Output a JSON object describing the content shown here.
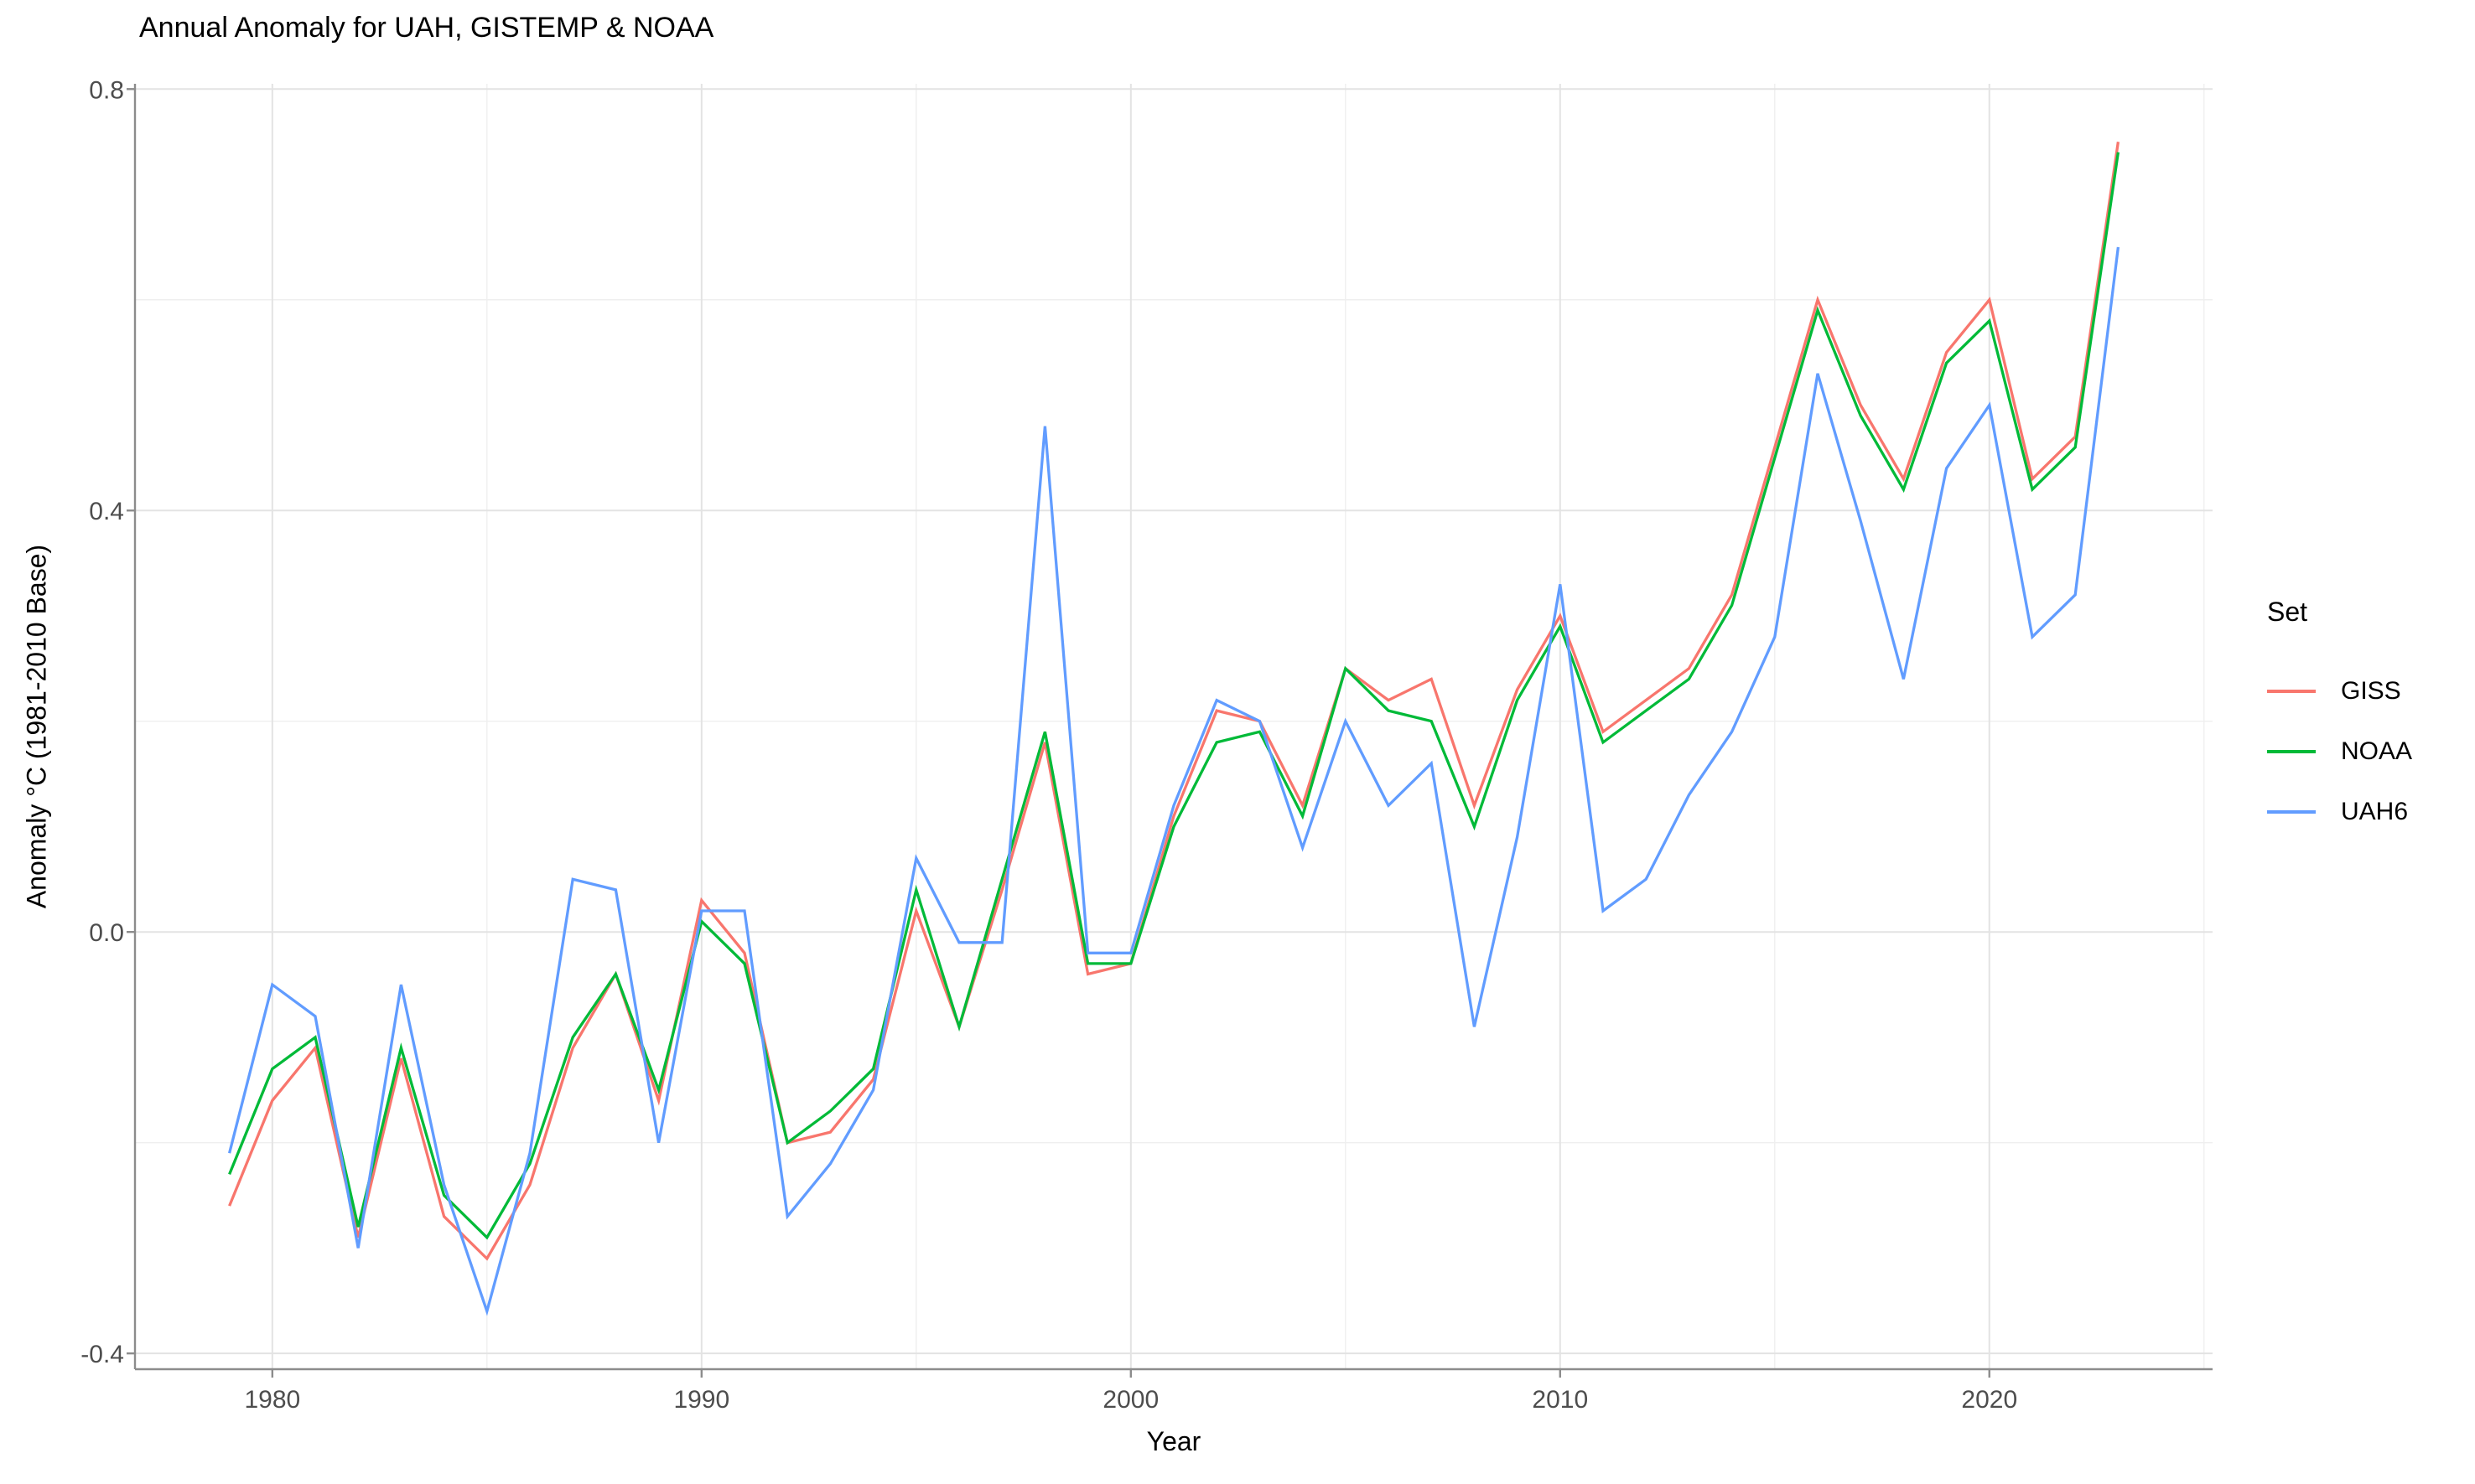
{
  "title": "Annual Anomaly for UAH, GISTEMP & NOAA",
  "legend": {
    "title": "Set",
    "items": [
      {
        "label": "GISS",
        "color": "#F8766D"
      },
      {
        "label": "NOAA",
        "color": "#00BA38"
      },
      {
        "label": "UAH6",
        "color": "#619CFF"
      }
    ]
  },
  "colors": {
    "background": "#FFFFFF",
    "grid_major": "#E3E3E3",
    "grid_minor": "#EFEFEF",
    "axis_line": "#8C8C8C",
    "tick_mark": "#8C8C8C",
    "tick_text": "#4D4D4D",
    "title_text": "#000000"
  },
  "chart_data": {
    "type": "line",
    "title": "Annual Anomaly for UAH, GISTEMP & NOAA",
    "xlabel": "Year",
    "ylabel": "Anomaly °C (1981-2010 Base)",
    "legend_title": "Set",
    "legend_position": "right",
    "grid": true,
    "x": [
      1979,
      1980,
      1981,
      1982,
      1983,
      1984,
      1985,
      1986,
      1987,
      1988,
      1989,
      1990,
      1991,
      1992,
      1993,
      1994,
      1995,
      1996,
      1997,
      1998,
      1999,
      2000,
      2001,
      2002,
      2003,
      2004,
      2005,
      2006,
      2007,
      2008,
      2009,
      2010,
      2011,
      2012,
      2013,
      2014,
      2015,
      2016,
      2017,
      2018,
      2019,
      2020,
      2021,
      2022,
      2023
    ],
    "series": [
      {
        "name": "GISS",
        "color": "#F8766D",
        "values": [
          -0.26,
          -0.16,
          -0.11,
          -0.29,
          -0.12,
          -0.27,
          -0.31,
          -0.24,
          -0.11,
          -0.04,
          -0.16,
          0.03,
          -0.02,
          -0.2,
          -0.19,
          -0.14,
          0.02,
          -0.09,
          0.04,
          0.18,
          -0.04,
          -0.03,
          0.11,
          0.21,
          0.2,
          0.12,
          0.25,
          0.22,
          0.24,
          0.12,
          0.23,
          0.3,
          0.19,
          0.22,
          0.25,
          0.32,
          0.46,
          0.6,
          0.5,
          0.43,
          0.55,
          0.6,
          0.43,
          0.47,
          0.75
        ]
      },
      {
        "name": "NOAA",
        "color": "#00BA38",
        "values": [
          -0.23,
          -0.13,
          -0.1,
          -0.28,
          -0.11,
          -0.25,
          -0.29,
          -0.22,
          -0.1,
          -0.04,
          -0.15,
          0.01,
          -0.03,
          -0.2,
          -0.17,
          -0.13,
          0.04,
          -0.09,
          0.05,
          0.19,
          -0.03,
          -0.03,
          0.1,
          0.18,
          0.19,
          0.11,
          0.25,
          0.21,
          0.2,
          0.1,
          0.22,
          0.29,
          0.18,
          0.21,
          0.24,
          0.31,
          0.45,
          0.59,
          0.49,
          0.42,
          0.54,
          0.58,
          0.42,
          0.46,
          0.74
        ]
      },
      {
        "name": "UAH6",
        "color": "#619CFF",
        "values": [
          -0.21,
          -0.05,
          -0.08,
          -0.3,
          -0.05,
          -0.24,
          -0.36,
          -0.21,
          0.05,
          0.04,
          -0.2,
          0.02,
          0.02,
          -0.27,
          -0.22,
          -0.15,
          0.07,
          -0.01,
          -0.01,
          0.48,
          -0.02,
          -0.02,
          0.12,
          0.22,
          0.2,
          0.08,
          0.2,
          0.12,
          0.16,
          -0.09,
          0.09,
          0.33,
          0.02,
          0.05,
          0.13,
          0.19,
          0.28,
          0.53,
          0.39,
          0.24,
          0.44,
          0.5,
          0.28,
          0.32,
          0.65
        ]
      }
    ],
    "x_ticks": [
      1980,
      1990,
      2000,
      2010,
      2020
    ],
    "x_tick_labels": [
      "1980",
      "1990",
      "2000",
      "2010",
      "2020"
    ],
    "x_minor": [
      1985,
      1995,
      2005,
      2015,
      2025
    ],
    "y_ticks": [
      0.8,
      0.4,
      0,
      -0.4
    ],
    "y_tick_labels": [
      "0.8",
      "0.4",
      "0.0",
      "-0.4"
    ],
    "y_minor": [
      0.6,
      0.2,
      -0.2
    ],
    "xlim": [
      1976.8,
      2025.2
    ],
    "ylim": [
      -0.415,
      0.805
    ]
  }
}
